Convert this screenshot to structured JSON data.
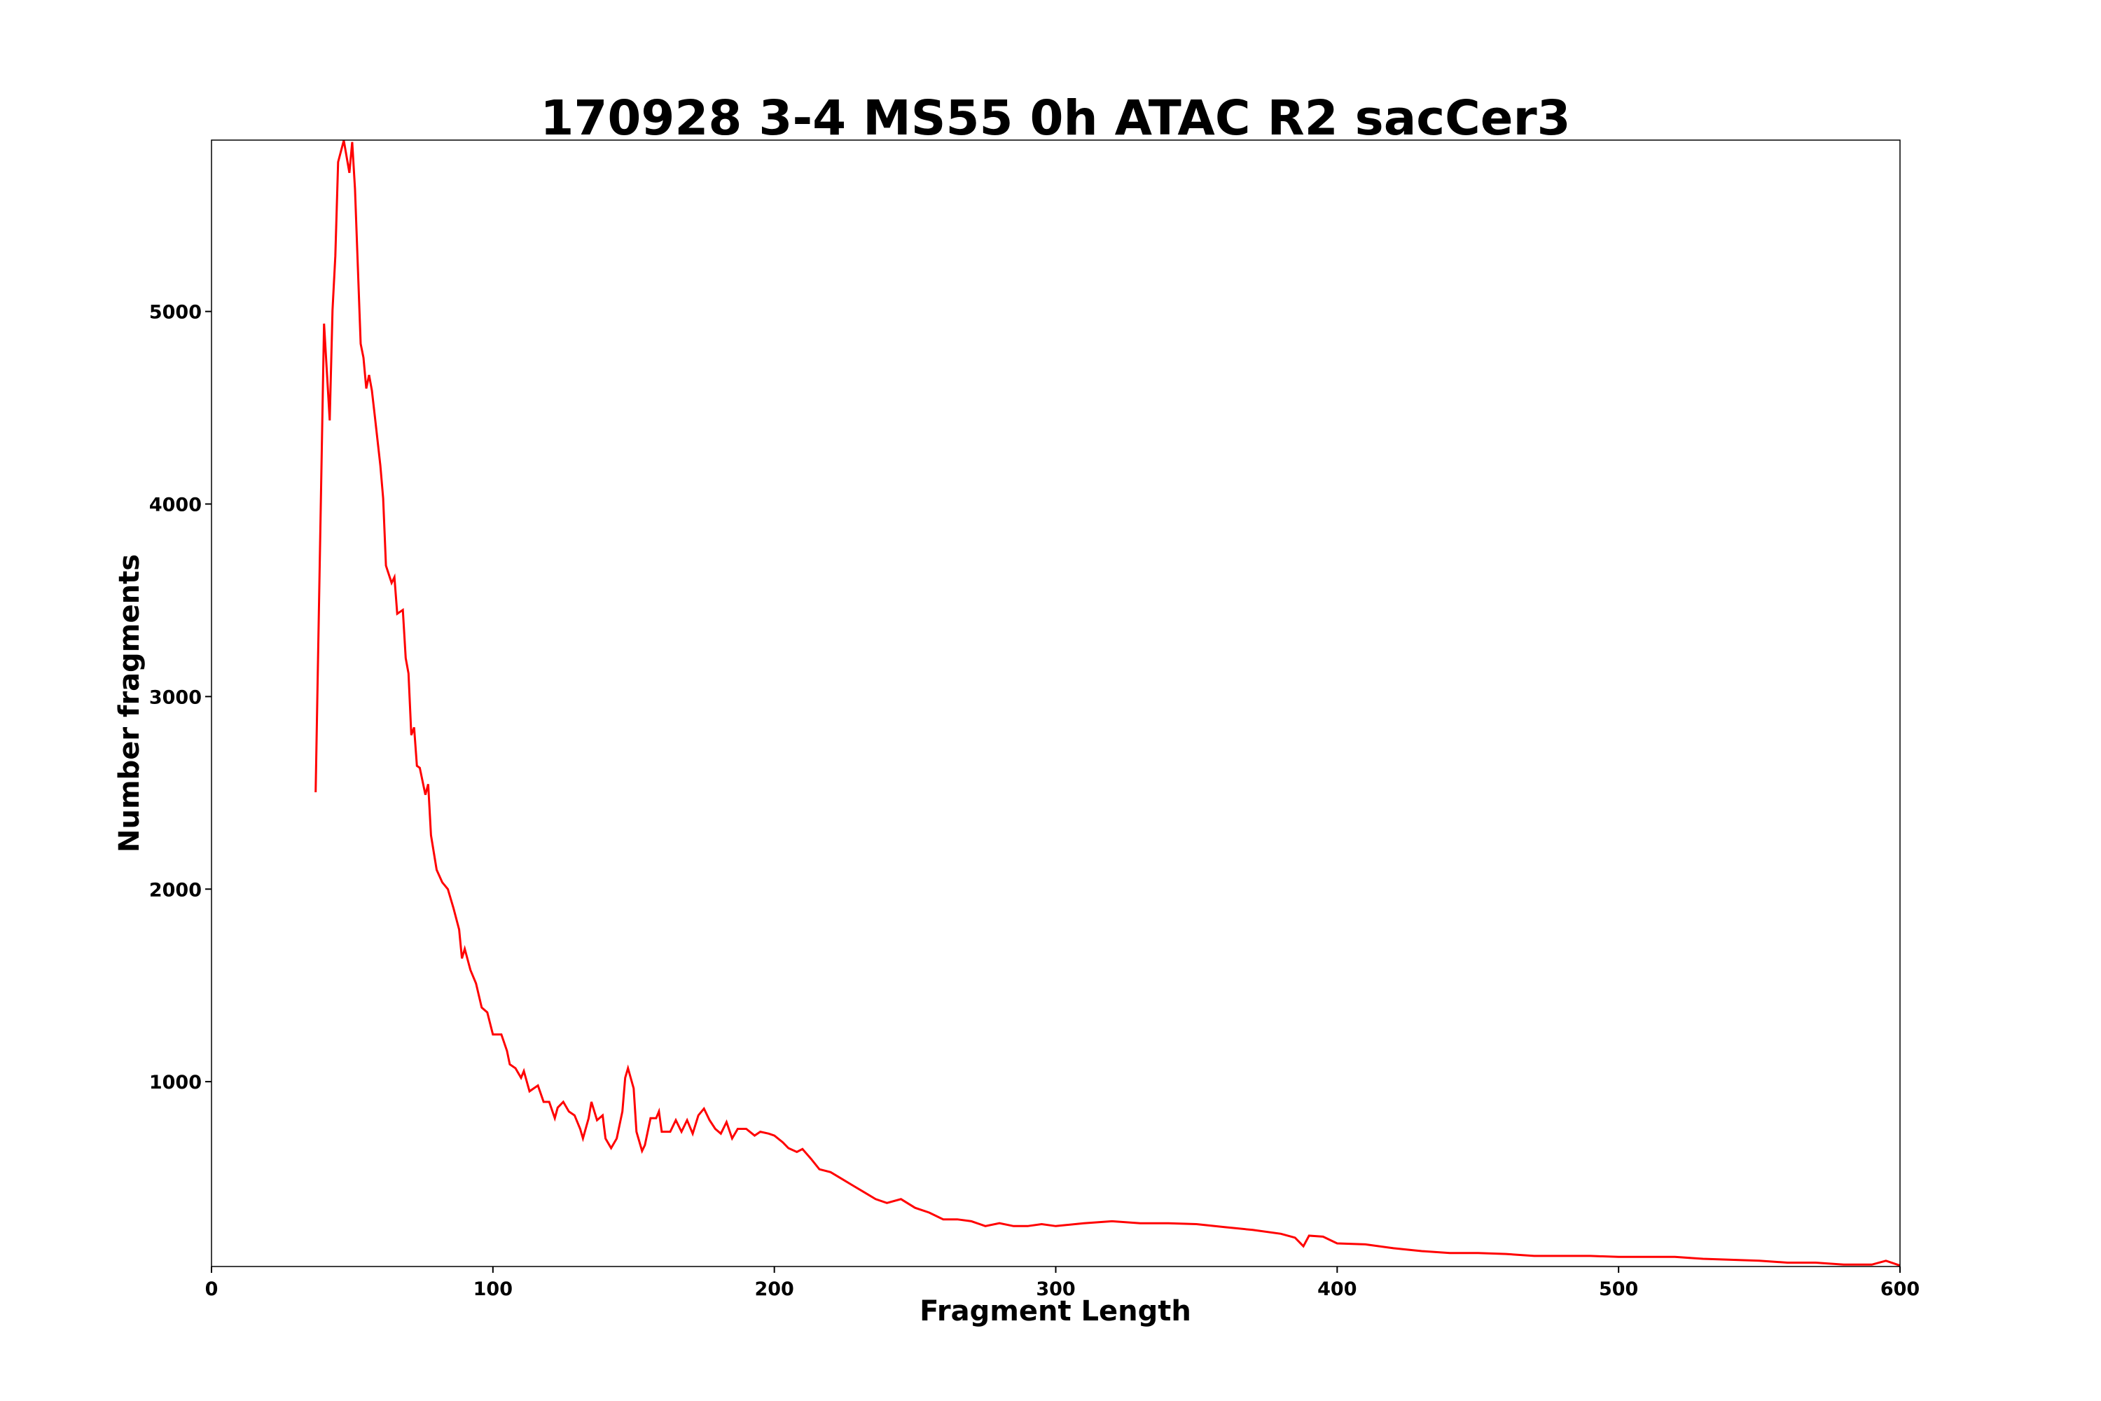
{
  "chart_data": {
    "type": "line",
    "title": "170928 3-4 MS55 0h ATAC R2 sacCer3",
    "xlabel": "Fragment Length",
    "ylabel": "Number fragments",
    "color": "#ff0000",
    "x": [
      37,
      40,
      42,
      43,
      44,
      45,
      47,
      49,
      50,
      51,
      53,
      54,
      55,
      56,
      57,
      58,
      60,
      61,
      62,
      64,
      65,
      66,
      68,
      69,
      70,
      71,
      72,
      73,
      74,
      76,
      77,
      78,
      80,
      82,
      84,
      86,
      88,
      89,
      90,
      92,
      94,
      96,
      98,
      100,
      103,
      105,
      106,
      108,
      110,
      111,
      113,
      116,
      118,
      120,
      122,
      123,
      125,
      127,
      129,
      131,
      132,
      134,
      135,
      137,
      139,
      140,
      142,
      144,
      146,
      147,
      148,
      150,
      151,
      153,
      154,
      156,
      158,
      159,
      160,
      163,
      165,
      167,
      169,
      171,
      173,
      175,
      177,
      179,
      181,
      183,
      185,
      187,
      190,
      193,
      195,
      198,
      200,
      203,
      205,
      208,
      210,
      213,
      216,
      220,
      224,
      228,
      232,
      236,
      240,
      245,
      250,
      255,
      260,
      265,
      270,
      275,
      280,
      285,
      290,
      295,
      300,
      310,
      320,
      330,
      340,
      350,
      360,
      370,
      380,
      385,
      388,
      390,
      395,
      400,
      410,
      420,
      430,
      440,
      450,
      460,
      470,
      480,
      490,
      500,
      510,
      520,
      530,
      540,
      550,
      560,
      570,
      580,
      590,
      595,
      600
    ],
    "values": [
      2503,
      4937,
      4434,
      5007,
      5287,
      5776,
      5888,
      5720,
      5880,
      5636,
      4832,
      4760,
      4600,
      4670,
      4590,
      4460,
      4200,
      4030,
      3680,
      3590,
      3620,
      3430,
      3450,
      3200,
      3120,
      2800,
      2840,
      2640,
      2630,
      2490,
      2545,
      2280,
      2100,
      2035,
      2000,
      1900,
      1790,
      1640,
      1690,
      1580,
      1510,
      1385,
      1360,
      1245,
      1245,
      1160,
      1090,
      1070,
      1020,
      1055,
      950,
      980,
      895,
      895,
      810,
      865,
      895,
      845,
      825,
      755,
      705,
      810,
      895,
      800,
      825,
      705,
      655,
      705,
      845,
      1020,
      1070,
      965,
      740,
      640,
      670,
      810,
      810,
      845,
      740,
      740,
      800,
      740,
      800,
      730,
      825,
      860,
      800,
      755,
      730,
      790,
      705,
      755,
      755,
      720,
      740,
      730,
      720,
      685,
      655,
      635,
      650,
      600,
      545,
      530,
      495,
      460,
      425,
      390,
      370,
      390,
      345,
      320,
      285,
      285,
      275,
      250,
      265,
      250,
      250,
      260,
      250,
      265,
      275,
      265,
      265,
      260,
      245,
      230,
      210,
      190,
      145,
      200,
      195,
      160,
      155,
      135,
      120,
      110,
      110,
      105,
      95,
      95,
      95,
      90,
      90,
      90,
      80,
      75,
      70,
      60,
      60,
      50,
      50,
      70,
      45
    ],
    "xlim": [
      0,
      600
    ],
    "xticks": [
      0,
      100,
      200,
      300,
      400,
      500,
      600
    ],
    "ylim": [
      40,
      5890
    ],
    "yticks": [
      1000,
      2000,
      3000,
      4000,
      5000
    ],
    "grid": false
  }
}
